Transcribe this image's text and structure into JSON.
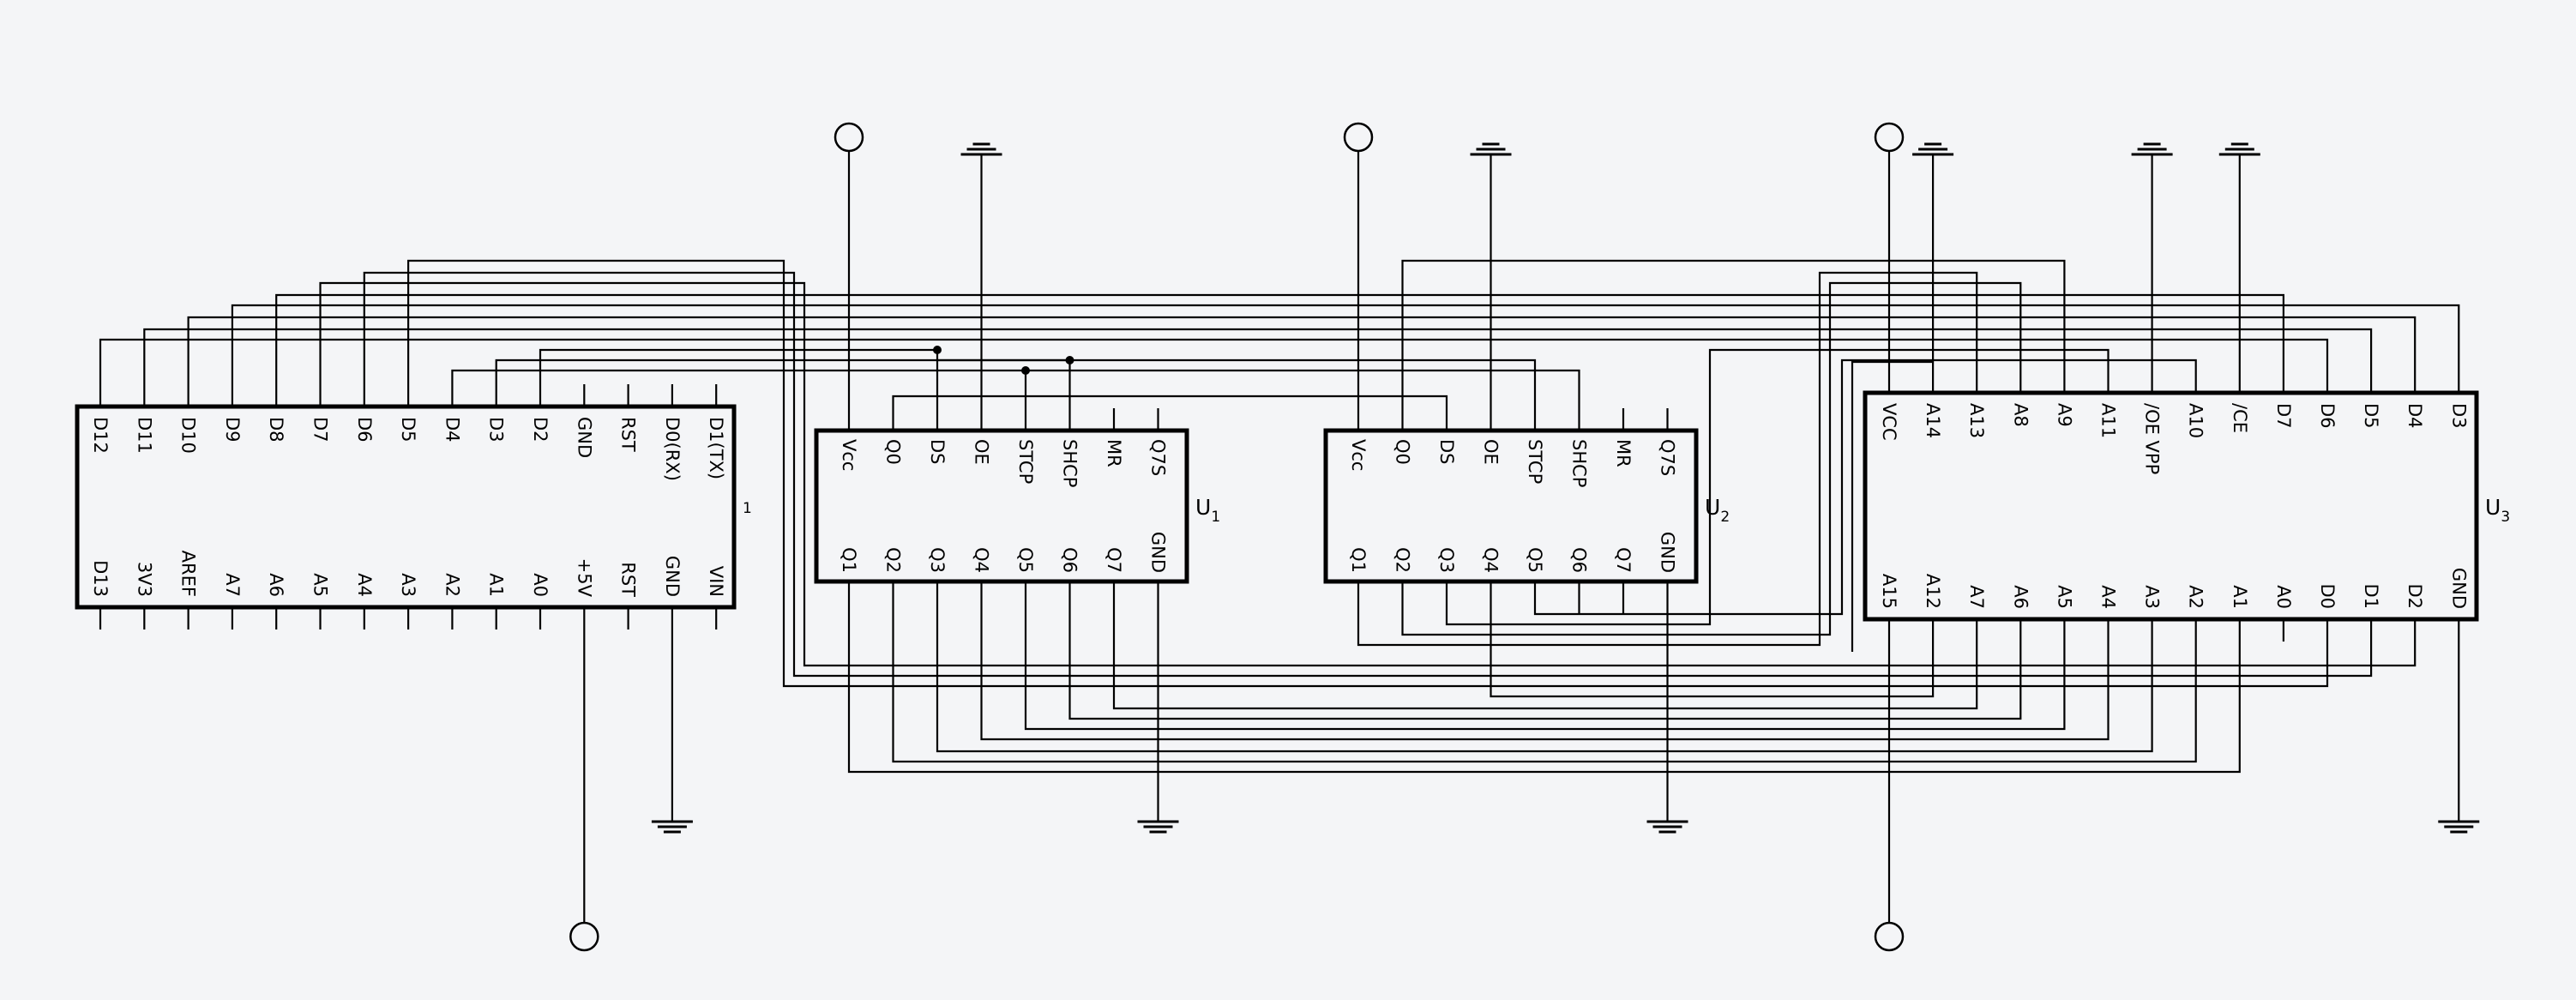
{
  "arduino": {
    "pin_marker": "1",
    "top_pins": [
      "D12",
      "D11",
      "D10",
      "D9",
      "D8",
      "D7",
      "D6",
      "D5",
      "D4",
      "D3",
      "D2",
      "GND",
      "RST",
      "D0(RX)",
      "D1(TX)"
    ],
    "bottom_pins": [
      "D13",
      "3V3",
      "AREF",
      "A7",
      "A6",
      "A5",
      "A4",
      "A3",
      "A2",
      "A1",
      "A0",
      "+5V",
      "RST",
      "GND",
      "VIN"
    ]
  },
  "u1": {
    "ref": "U",
    "ref_sub": "1",
    "top_pins": [
      "Vcc",
      "Q0",
      "DS",
      "OE",
      "STCP",
      "SHCP",
      "MR",
      "Q7S"
    ],
    "bottom_pins": [
      "Q1",
      "Q2",
      "Q3",
      "Q4",
      "Q5",
      "Q6",
      "Q7",
      "GND"
    ]
  },
  "u2": {
    "ref": "U",
    "ref_sub": "2",
    "top_pins": [
      "Vcc",
      "Q0",
      "DS",
      "OE",
      "STCP",
      "SHCP",
      "MR",
      "Q7S"
    ],
    "bottom_pins": [
      "Q1",
      "Q2",
      "Q3",
      "Q4",
      "Q5",
      "Q6",
      "Q7",
      "GND"
    ]
  },
  "u3": {
    "ref": "U",
    "ref_sub": "3",
    "top_pins": [
      "VCC",
      "A14",
      "A13",
      "A8",
      "A9",
      "A11",
      "/OE VPP",
      "A10",
      "/CE",
      "D7",
      "D6",
      "D5",
      "D4",
      "D3"
    ],
    "bottom_pins": [
      "A15",
      "A12",
      "A7",
      "A6",
      "A5",
      "A4",
      "A3",
      "A2",
      "A1",
      "A0",
      "D0",
      "D1",
      "D2",
      "GND"
    ]
  }
}
